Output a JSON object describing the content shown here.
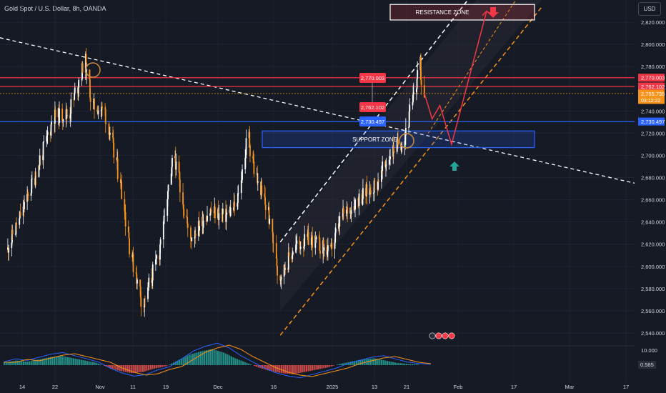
{
  "header": {
    "symbol": "Gold Spot / U.S. Dollar, 8h, OANDA",
    "currency": "USD"
  },
  "chart_data": {
    "type": "candlestick",
    "y_axis": {
      "ticks": [
        "2,820.000",
        "2,800.000",
        "2,780.000",
        "2,760.000",
        "2,740.000",
        "2,720.000",
        "2,700.000",
        "2,680.000",
        "2,660.000",
        "2,640.000",
        "2,620.000",
        "2,600.000",
        "2,580.000",
        "2,560.000",
        "2,540.000"
      ],
      "tick_values": [
        2820,
        2800,
        2780,
        2760,
        2740,
        2720,
        2700,
        2680,
        2660,
        2640,
        2620,
        2600,
        2580,
        2560,
        2540
      ],
      "range": [
        2531,
        2840
      ]
    },
    "x_axis": {
      "ticks": [
        "14",
        "22",
        "Nov",
        "11",
        "19",
        "Dec",
        "16",
        "2025",
        "13",
        "21",
        "Feb",
        "17",
        "Mar",
        "17"
      ]
    },
    "price_labels": [
      {
        "text": "2,770.003",
        "value": 2770.003,
        "color": "#f23645"
      },
      {
        "text": "2,762.102",
        "value": 2762.102,
        "color": "#f23645"
      },
      {
        "text": "2,755.735",
        "value": 2755.735,
        "color": "#f7931a",
        "sub": "03:12:22"
      },
      {
        "text": "2,730.497",
        "value": 2730.497,
        "color": "#2962ff"
      }
    ],
    "chart_callouts": [
      {
        "text": "2,770.003",
        "color": "#f23645"
      },
      {
        "text": "2,762.102",
        "color": "#f23645"
      },
      {
        "text": "2,730.497",
        "color": "#2962ff"
      }
    ],
    "zones": [
      {
        "label": "RESISTANCE ZONE",
        "low": 2822,
        "high": 2836,
        "color": "#f23645"
      },
      {
        "label": "SUPPORT ZONE",
        "low": 2707,
        "high": 2722,
        "color": "#2962ff"
      }
    ],
    "candles_anchor": [
      [
        "2024-10-10",
        2615
      ],
      [
        "2024-10-14",
        2650
      ],
      [
        "2024-10-18",
        2690
      ],
      [
        "2024-10-22",
        2735
      ],
      [
        "2024-10-26",
        2738
      ],
      [
        "2024-10-30",
        2785
      ],
      [
        "2024-11-01",
        2745
      ],
      [
        "2024-11-04",
        2740
      ],
      [
        "2024-11-08",
        2680
      ],
      [
        "2024-11-11",
        2610
      ],
      [
        "2024-11-14",
        2565
      ],
      [
        "2024-11-18",
        2612
      ],
      [
        "2024-11-22",
        2700
      ],
      [
        "2024-11-26",
        2625
      ],
      [
        "2024-12-01",
        2650
      ],
      [
        "2024-12-05",
        2645
      ],
      [
        "2024-12-08",
        2655
      ],
      [
        "2024-12-11",
        2718
      ],
      [
        "2024-12-13",
        2680
      ],
      [
        "2024-12-16",
        2650
      ],
      [
        "2024-12-19",
        2590
      ],
      [
        "2024-12-23",
        2618
      ],
      [
        "2024-12-27",
        2625
      ],
      [
        "2025-01-01",
        2612
      ],
      [
        "2025-01-04",
        2645
      ],
      [
        "2025-01-08",
        2660
      ],
      [
        "2025-01-13",
        2675
      ],
      [
        "2025-01-17",
        2705
      ],
      [
        "2025-01-20",
        2715
      ],
      [
        "2025-01-22",
        2745
      ],
      [
        "2025-01-24",
        2782
      ],
      [
        "2025-01-25",
        2756
      ]
    ],
    "projection": [
      [
        "2025-01-25",
        2756
      ],
      [
        "2025-01-27",
        2733
      ],
      [
        "2025-01-29",
        2745
      ],
      [
        "2025-02-01",
        2710
      ],
      [
        "2025-02-10",
        2830
      ]
    ],
    "macd": {
      "labels": [
        "10.000",
        "0.585"
      ],
      "values": [
        2,
        4,
        3,
        5,
        7,
        8,
        6,
        4,
        2,
        -2,
        -5,
        -7,
        -6,
        -3,
        -1,
        4,
        9,
        12,
        14,
        11,
        6,
        2,
        -2,
        -5,
        -7,
        -8,
        -6,
        -4,
        -2,
        1,
        3,
        5,
        6,
        4,
        2,
        1,
        0.585
      ]
    },
    "colors": {
      "background": "#161a25",
      "grid": "#1f2330",
      "up": "#ffffff",
      "down": "#f7931a",
      "resistance": "#f23645",
      "support": "#2962ff",
      "channel": "#f7931a"
    }
  }
}
